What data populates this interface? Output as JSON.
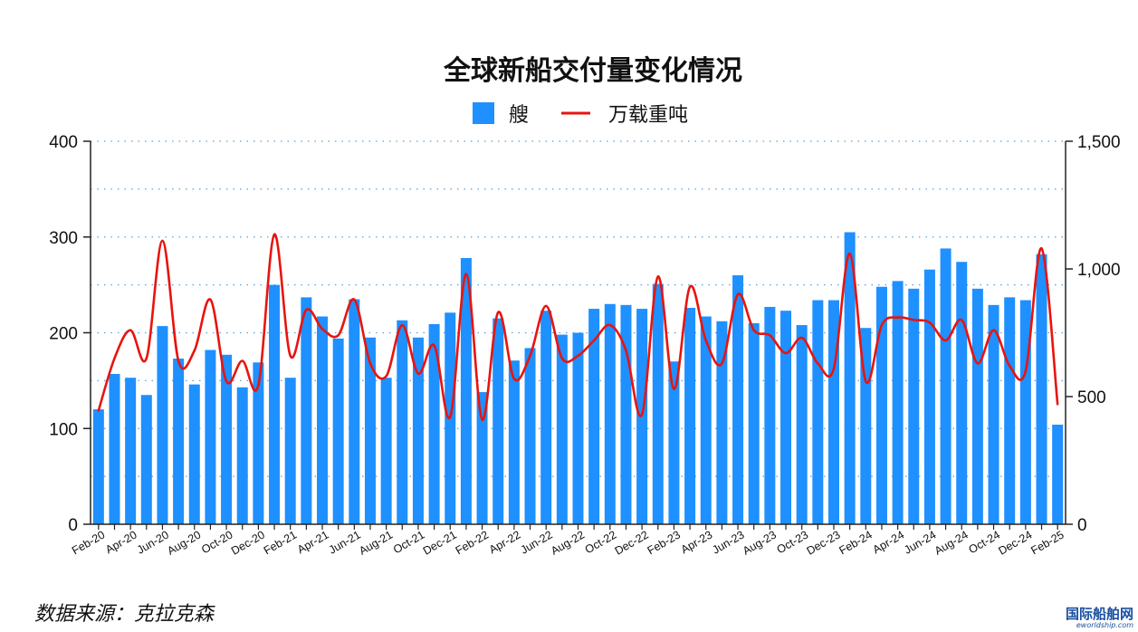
{
  "chart_data": {
    "type": "bar",
    "title": "全球新船交付量变化情况",
    "categories": [
      "Feb-20",
      "Mar-20",
      "Apr-20",
      "May-20",
      "Jun-20",
      "Jul-20",
      "Aug-20",
      "Sep-20",
      "Oct-20",
      "Nov-20",
      "Dec-20",
      "Jan-21",
      "Feb-21",
      "Mar-21",
      "Apr-21",
      "May-21",
      "Jun-21",
      "Jul-21",
      "Aug-21",
      "Sep-21",
      "Oct-21",
      "Nov-21",
      "Dec-21",
      "Jan-22",
      "Feb-22",
      "Mar-22",
      "Apr-22",
      "May-22",
      "Jun-22",
      "Jul-22",
      "Aug-22",
      "Sep-22",
      "Oct-22",
      "Nov-22",
      "Dec-22",
      "Jan-23",
      "Feb-23",
      "Mar-23",
      "Apr-23",
      "May-23",
      "Jun-23",
      "Jul-23",
      "Aug-23",
      "Sep-23",
      "Oct-23",
      "Nov-23",
      "Dec-23",
      "Jan-24",
      "Feb-24",
      "Mar-24",
      "Apr-24",
      "May-24",
      "Jun-24",
      "Jul-24",
      "Aug-24",
      "Sep-24",
      "Oct-24",
      "Nov-24",
      "Dec-24",
      "Jan-25",
      "Feb-25"
    ],
    "x_tick_labels": [
      "Feb-20",
      "Apr-20",
      "Jun-20",
      "Aug-20",
      "Oct-20",
      "Dec-20",
      "Feb-21",
      "Apr-21",
      "Jun-21",
      "Aug-21",
      "Oct-21",
      "Dec-21",
      "Feb-22",
      "Apr-22",
      "Jun-22",
      "Aug-22",
      "Oct-22",
      "Dec-22",
      "Feb-23",
      "Apr-23",
      "Jun-23",
      "Aug-23",
      "Oct-23",
      "Dec-23",
      "Feb-24",
      "Apr-24",
      "Jun-24",
      "Aug-24",
      "Oct-24",
      "Dec-24",
      "Feb-25"
    ],
    "series": [
      {
        "name": "艘",
        "type": "bar",
        "axis": "left",
        "color": "#1e90ff",
        "values": [
          120,
          157,
          153,
          135,
          207,
          173,
          146,
          182,
          177,
          143,
          169,
          250,
          153,
          237,
          217,
          194,
          235,
          195,
          153,
          213,
          195,
          209,
          221,
          278,
          138,
          215,
          171,
          184,
          223,
          198,
          200,
          225,
          230,
          229,
          225,
          251,
          170,
          226,
          217,
          212,
          260,
          210,
          227,
          223,
          208,
          234,
          234,
          305,
          205,
          248,
          254,
          246,
          266,
          288,
          274,
          246,
          229,
          237,
          234,
          282,
          104
        ]
      },
      {
        "name": "万载重吨",
        "type": "line",
        "axis": "right",
        "color": "#e8140e",
        "values": [
          445,
          650,
          760,
          650,
          1110,
          640,
          680,
          880,
          560,
          640,
          545,
          1135,
          660,
          840,
          765,
          740,
          880,
          630,
          580,
          780,
          590,
          700,
          420,
          980,
          410,
          830,
          570,
          660,
          855,
          650,
          660,
          720,
          780,
          680,
          430,
          970,
          530,
          930,
          720,
          630,
          900,
          760,
          740,
          670,
          730,
          630,
          610,
          1060,
          560,
          780,
          810,
          800,
          790,
          720,
          800,
          630,
          760,
          620,
          600,
          1080,
          470
        ]
      }
    ],
    "y_left": {
      "ticks": [
        "0",
        "100",
        "200",
        "300",
        "400"
      ],
      "ylim": [
        0,
        400
      ]
    },
    "y_right": {
      "ticks": [
        "0",
        "500",
        "1,000",
        "1,500"
      ],
      "ylim": [
        0,
        1500
      ]
    },
    "grid": "dotted horizontal",
    "legend": "top-center"
  },
  "footer": {
    "source": "数据来源：克拉克森",
    "logo_main": "国际船舶网",
    "logo_sub": "eworldship.com"
  }
}
